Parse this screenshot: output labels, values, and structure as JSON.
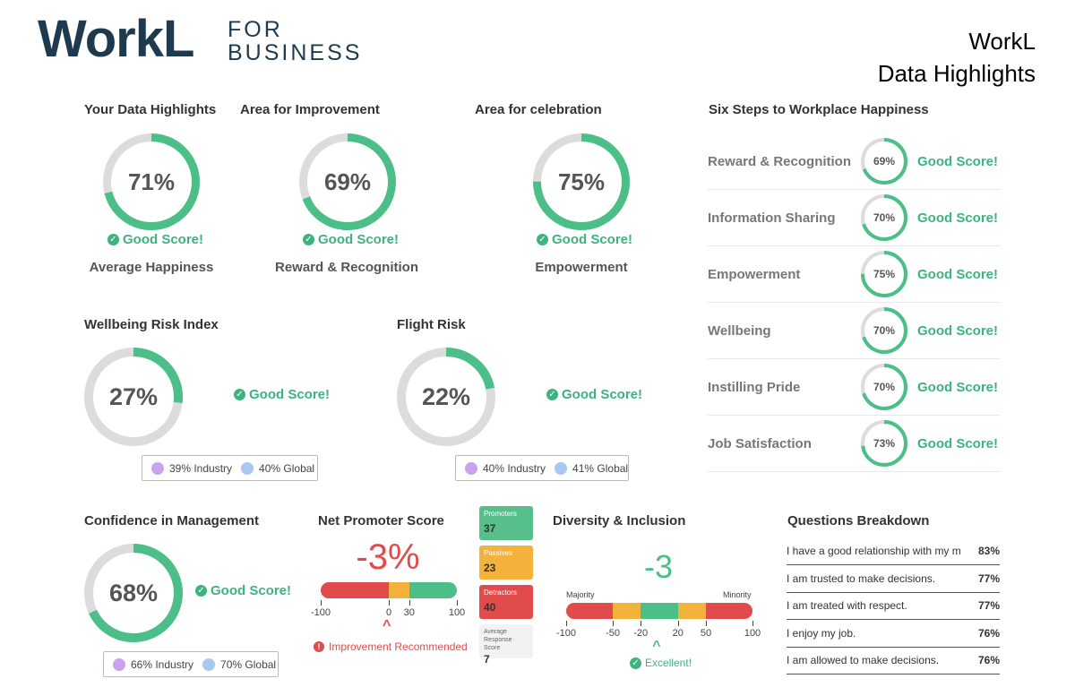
{
  "logo": {
    "name": "WorkL",
    "sub_line1": "FOR",
    "sub_line2": "BUSINESS"
  },
  "top_right": {
    "line1": "WorkL",
    "line2": "Data Highlights"
  },
  "colors": {
    "green": "#4cbf88",
    "track": "#dcdcdc",
    "red": "#e14b4b",
    "orange": "#f3b23c",
    "purple": "#c9a3ec",
    "blue": "#a9c8f0",
    "navy": "#1e3a4e"
  },
  "good_score": "Good Score!",
  "highlights": [
    {
      "title": "Your Data Highlights",
      "percent": 71,
      "text": "71%",
      "label": "Average Happiness"
    },
    {
      "title": "Area for Improvement",
      "percent": 69,
      "text": "69%",
      "label": "Reward & Recognition"
    },
    {
      "title": "Area for celebration",
      "percent": 75,
      "text": "75%",
      "label": "Empowerment"
    }
  ],
  "wellbeing": {
    "title": "Wellbeing Risk Index",
    "percent": 27,
    "text": "27%",
    "industry": "39% Industry",
    "global": "40% Global"
  },
  "flight": {
    "title": "Flight Risk",
    "percent": 22,
    "text": "22%",
    "industry": "40% Industry",
    "global": "41% Global"
  },
  "confidence": {
    "title": "Confidence in Management",
    "percent": 68,
    "text": "68%",
    "industry": "66% Industry",
    "global": "70% Global"
  },
  "six_steps": {
    "title": "Six Steps to Workplace Happiness",
    "items": [
      {
        "name": "Reward & Recognition",
        "percent": 69,
        "text": "69%"
      },
      {
        "name": "Information Sharing",
        "percent": 70,
        "text": "70%"
      },
      {
        "name": "Empowerment",
        "percent": 75,
        "text": "75%"
      },
      {
        "name": "Wellbeing",
        "percent": 70,
        "text": "70%"
      },
      {
        "name": "Instilling Pride",
        "percent": 70,
        "text": "70%"
      },
      {
        "name": "Job Satisfaction",
        "percent": 73,
        "text": "73%"
      }
    ]
  },
  "nps": {
    "title": "Net Promoter Score",
    "score": "-3%",
    "scale": {
      "min": -100,
      "max": 100,
      "segments": [
        {
          "from": -100,
          "to": 0,
          "color": "#e14b4b"
        },
        {
          "from": 0,
          "to": 30,
          "color": "#f3b23c"
        },
        {
          "from": 30,
          "to": 100,
          "color": "#4cbf88"
        }
      ]
    },
    "ticks": [
      {
        "value": -100,
        "label": "-100"
      },
      {
        "value": 0,
        "label": "0"
      },
      {
        "value": 30,
        "label": "30"
      },
      {
        "value": 100,
        "label": "100"
      }
    ],
    "marker_value": -3,
    "warning": "Improvement Recommended",
    "promoters_label": "Promoters",
    "promoters_value": "37",
    "passives_label": "Passives",
    "passives_value": "23",
    "detractors_label": "Detractors",
    "detractors_value": "40",
    "avg_label": "Average Response Score",
    "avg_value": "7"
  },
  "diversity": {
    "title": "Diversity & Inclusion",
    "score": "-3",
    "majority": "Majority",
    "minority": "Minority",
    "scale": {
      "min": -100,
      "max": 100,
      "segments": [
        {
          "from": -100,
          "to": -50,
          "color": "#e14b4b"
        },
        {
          "from": -50,
          "to": -20,
          "color": "#f3b23c"
        },
        {
          "from": -20,
          "to": 20,
          "color": "#4cbf88"
        },
        {
          "from": 20,
          "to": 50,
          "color": "#f3b23c"
        },
        {
          "from": 50,
          "to": 100,
          "color": "#e14b4b"
        }
      ]
    },
    "ticks": [
      {
        "value": -100,
        "label": "-100"
      },
      {
        "value": -50,
        "label": "-50"
      },
      {
        "value": -20,
        "label": "-20"
      },
      {
        "value": 20,
        "label": "20"
      },
      {
        "value": 50,
        "label": "50"
      },
      {
        "value": 100,
        "label": "100"
      }
    ],
    "marker_value": -3,
    "status": "Excellent!"
  },
  "questions": {
    "title": "Questions Breakdown",
    "items": [
      {
        "text": "I have a good relationship with my m",
        "value": "83%"
      },
      {
        "text": "I am trusted to make decisions.",
        "value": "77%"
      },
      {
        "text": "I am treated with respect.",
        "value": "77%"
      },
      {
        "text": "I enjoy my job.",
        "value": "76%"
      },
      {
        "text": "I am allowed to make decisions.",
        "value": "76%"
      }
    ]
  }
}
